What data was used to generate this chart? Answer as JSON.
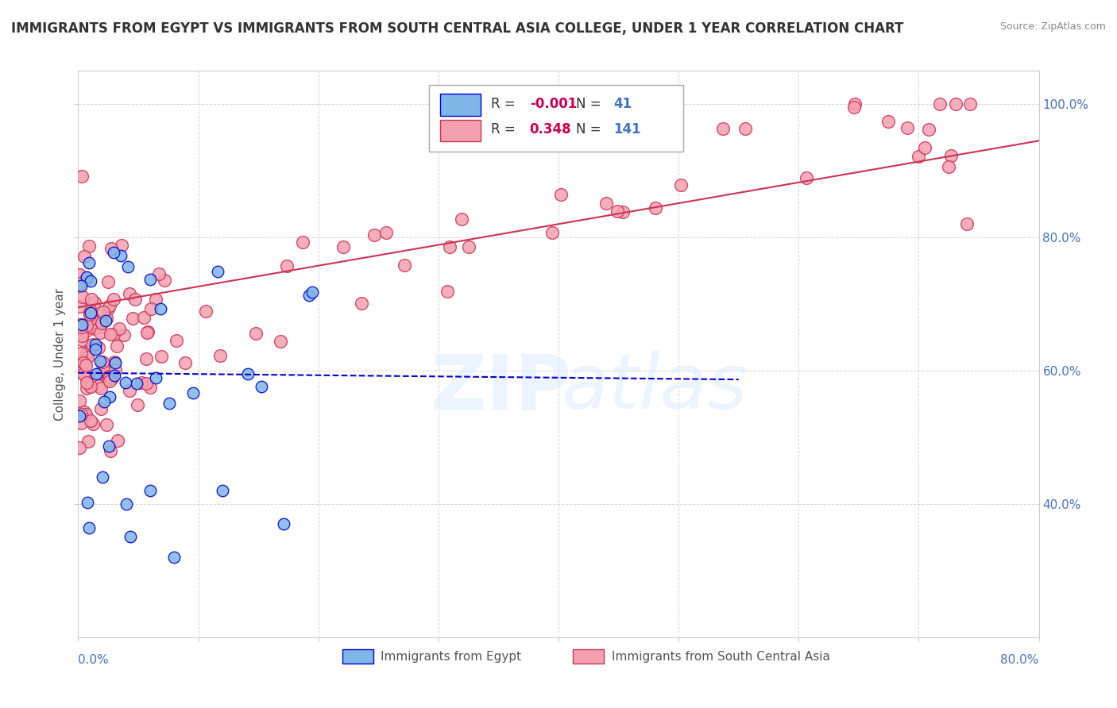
{
  "title": "IMMIGRANTS FROM EGYPT VS IMMIGRANTS FROM SOUTH CENTRAL ASIA COLLEGE, UNDER 1 YEAR CORRELATION CHART",
  "source": "Source: ZipAtlas.com",
  "ylabel": "College, Under 1 year",
  "legend_egypt": "Immigrants from Egypt",
  "legend_sca": "Immigrants from South Central Asia",
  "r_egypt": "-0.001",
  "n_egypt": "41",
  "r_sca": "0.348",
  "n_sca": "141",
  "color_egypt": "#7EB6E8",
  "color_egypt_line": "#0000CC",
  "color_sca": "#F4A0B0",
  "color_sca_line": "#CC3355",
  "xlim": [
    0.0,
    0.8
  ],
  "ylim": [
    0.2,
    1.05
  ],
  "ytick_vals": [
    0.4,
    0.6,
    0.8,
    1.0
  ],
  "ytick_labels": [
    "40.0%",
    "60.0%",
    "80.0%",
    "100.0%"
  ]
}
